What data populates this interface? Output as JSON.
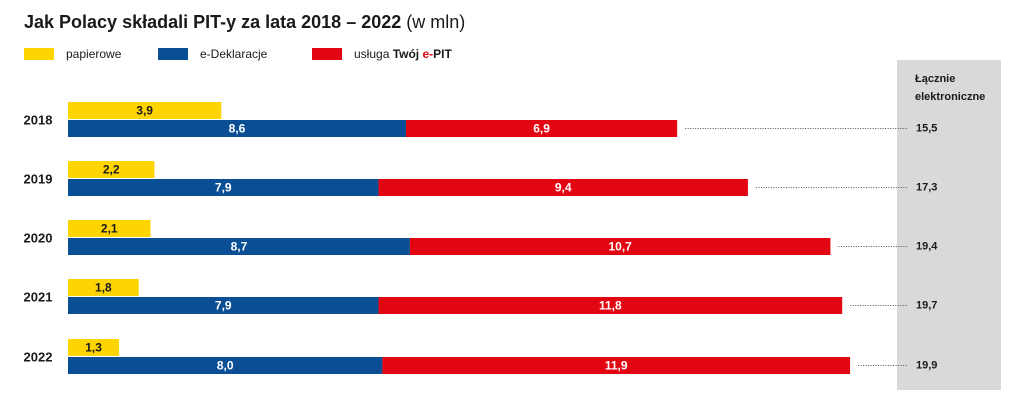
{
  "title": {
    "main": "Jak Polacy składali PIT-y za lata 2018 – 2022",
    "unit": "(w mln)"
  },
  "legend": [
    {
      "label_prefix": "papierowe",
      "label_bold_a": "",
      "label_bold_b": "",
      "color": "#ffd500"
    },
    {
      "label_prefix": "e-Deklaracje",
      "label_bold_a": "",
      "label_bold_b": "",
      "color": "#0a4f96"
    },
    {
      "label_prefix": "usługa ",
      "label_bold_a": "Twój ",
      "label_bold_b": "e-",
      "label_bold_c": "PIT",
      "color": "#e20613"
    }
  ],
  "total_header": "Łącznie elektroniczne",
  "colors": {
    "paper": "#ffd500",
    "edekl": "#0a4f96",
    "epit": "#e20613",
    "panel": "#d9d9d9",
    "accent_red": "#e20613"
  },
  "chart_data": {
    "type": "bar",
    "orientation": "horizontal",
    "stacked": "partially",
    "title": "Jak Polacy składali PIT-y za lata 2018 – 2022 (w mln)",
    "categories": [
      "2018",
      "2019",
      "2020",
      "2021",
      "2022"
    ],
    "series": [
      {
        "name": "papierowe",
        "values": [
          3.9,
          2.2,
          2.1,
          1.8,
          1.3
        ],
        "labels": [
          "3,9",
          "2,2",
          "2,1",
          "1,8",
          "1,3"
        ]
      },
      {
        "name": "e-Deklaracje",
        "values": [
          8.6,
          7.9,
          8.7,
          7.9,
          8.0
        ],
        "labels": [
          "8,6",
          "7,9",
          "8,7",
          "7,9",
          "8,0"
        ]
      },
      {
        "name": "usługa Twój e-PIT",
        "values": [
          6.9,
          9.4,
          10.7,
          11.8,
          11.9
        ],
        "labels": [
          "6,9",
          "9,4",
          "10,7",
          "11,8",
          "11,9"
        ]
      }
    ],
    "totals_electronic": {
      "name": "Łącznie elektroniczne",
      "values": [
        15.5,
        17.3,
        19.4,
        19.7,
        19.9
      ],
      "labels": [
        "15,5",
        "17,3",
        "19,4",
        "19,7",
        "19,9"
      ]
    },
    "grid": false,
    "legend_position": "top-left"
  }
}
